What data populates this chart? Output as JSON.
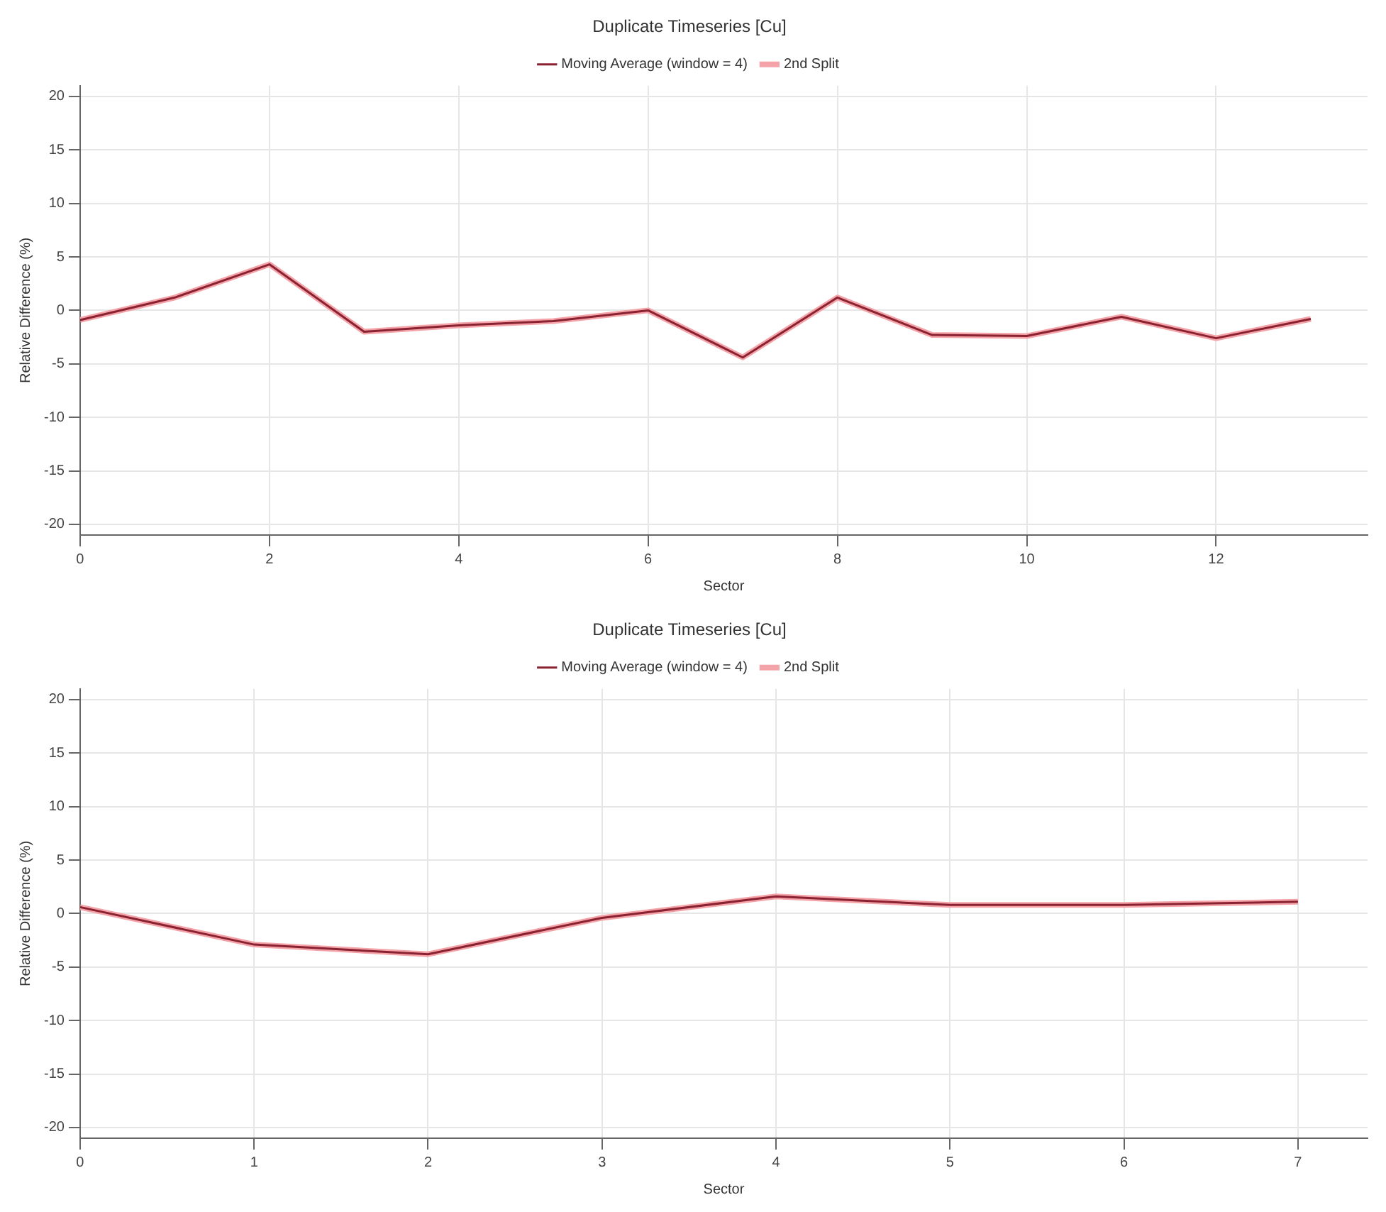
{
  "chart_data": [
    {
      "type": "line",
      "title": "Duplicate Timeseries [Cu]",
      "xlabel": "Sector",
      "ylabel": "Relative Difference (%)",
      "x": [
        0,
        1,
        2,
        3,
        4,
        5,
        6,
        7,
        8,
        9,
        10,
        11,
        12,
        13
      ],
      "series": [
        {
          "name": "2nd Split",
          "color": "#f4a3a8",
          "values": [
            -0.9,
            1.2,
            4.3,
            -2.0,
            -1.4,
            -1.0,
            0,
            -4.4,
            1.2,
            -2.3,
            -2.4,
            -0.6,
            -2.6,
            -0.8
          ]
        },
        {
          "name": "Moving Average (window = 4)",
          "color": "#8b2232",
          "values": [
            -0.9,
            1.2,
            4.3,
            -2.0,
            -1.4,
            -1.0,
            0,
            -4.4,
            1.2,
            -2.3,
            -2.4,
            -0.6,
            -2.6,
            -0.8
          ]
        }
      ],
      "xlim": [
        0,
        13.6
      ],
      "xticks": [
        0,
        2,
        4,
        6,
        8,
        10,
        12
      ],
      "ylim": [
        -21,
        21
      ],
      "yticks": [
        -20,
        -15,
        -10,
        -5,
        0,
        5,
        10,
        15,
        20
      ],
      "grid": true,
      "legend": "top",
      "marker": "none",
      "line_style": "solid"
    },
    {
      "type": "line",
      "title": "Duplicate Timeseries [Cu]",
      "xlabel": "Sector",
      "ylabel": "Relative Difference (%)",
      "x": [
        0,
        1,
        2,
        3,
        4,
        5,
        6,
        7
      ],
      "series": [
        {
          "name": "2nd Split",
          "color": "#f4a3a8",
          "values": [
            0.6,
            -2.9,
            -3.8,
            -0.4,
            1.6,
            0.8,
            0.8,
            1.1
          ]
        },
        {
          "name": "Moving Average (window = 4)",
          "color": "#8b2232",
          "values": [
            0.6,
            -2.9,
            -3.8,
            -0.4,
            1.6,
            0.8,
            0.8,
            1.1
          ]
        }
      ],
      "xlim": [
        0,
        7.4
      ],
      "xticks": [
        0,
        1,
        2,
        3,
        4,
        5,
        6,
        7
      ],
      "ylim": [
        -21,
        21
      ],
      "yticks": [
        -20,
        -15,
        -10,
        -5,
        0,
        5,
        10,
        15,
        20
      ],
      "grid": true,
      "legend": "top",
      "marker": "none",
      "line_style": "solid"
    }
  ]
}
